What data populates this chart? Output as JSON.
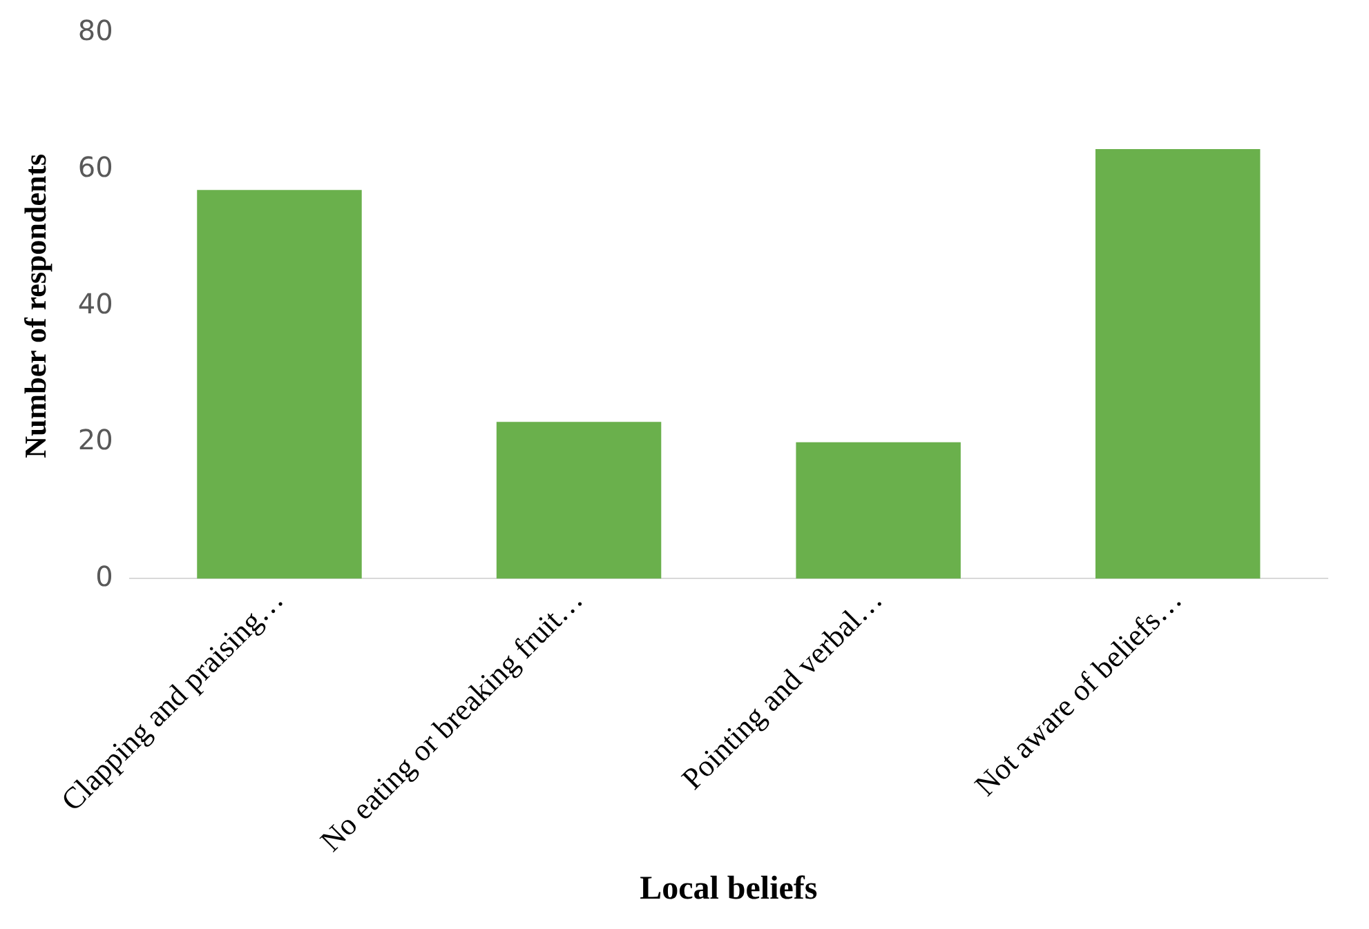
{
  "chart_data": {
    "type": "bar",
    "xlabel": "Local beliefs",
    "ylabel": "Number of respondents",
    "categories": [
      "Clapping and praising…",
      "No eating or breaking fruit…",
      "Pointing and verbal…",
      "Not aware of beliefs…"
    ],
    "values": [
      57,
      23,
      20,
      63
    ],
    "color": "#6ab04c",
    "ylim": [
      0,
      80
    ],
    "yticks": [
      0,
      20,
      40,
      60,
      80
    ],
    "grid": false
  }
}
